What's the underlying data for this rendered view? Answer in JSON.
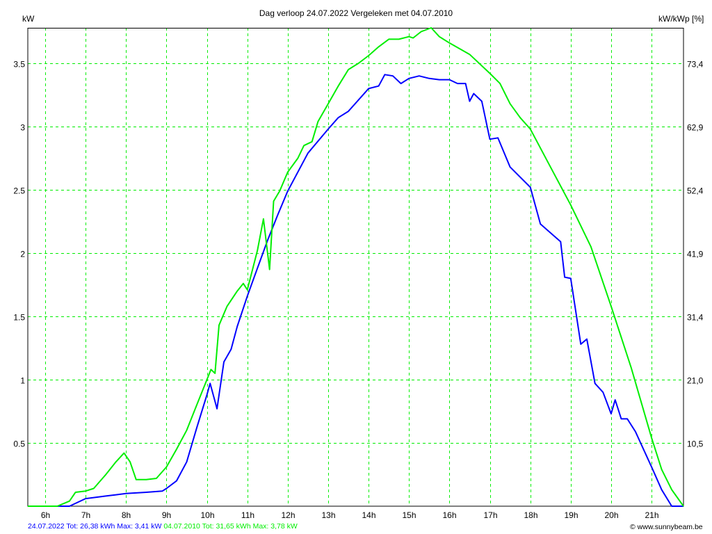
{
  "chart_data": {
    "type": "line",
    "title": "Dag  verloop 24.07.2022   Vergeleken met 04.07.2010",
    "ylabel": "kW",
    "y2label": "kW/kWp [%]",
    "xlim": [
      5.57,
      21.79
    ],
    "ylim": [
      0,
      3.78
    ],
    "grid": true,
    "xticks": [
      6,
      7,
      8,
      9,
      10,
      11,
      12,
      13,
      14,
      15,
      16,
      17,
      18,
      19,
      20,
      21
    ],
    "xtick_labels": [
      "6h",
      "7h",
      "8h",
      "9h",
      "10h",
      "11h",
      "12h",
      "13h",
      "14h",
      "15h",
      "16h",
      "17h",
      "18h",
      "19h",
      "20h",
      "21h"
    ],
    "yticks": [
      0.5,
      1,
      1.5,
      2,
      2.5,
      3,
      3.5
    ],
    "ytick_labels": [
      "0.5",
      "1",
      "1.5",
      "2",
      "2.5",
      "3",
      "3.5"
    ],
    "y2tick_labels": [
      "10,5",
      "21,0",
      "31,4",
      "41,9",
      "52,4",
      "62,9",
      "73,4"
    ],
    "series": [
      {
        "name": "24.07.2022",
        "color": "#0000ff",
        "x": [
          5.57,
          6.6,
          7.0,
          7.25,
          7.5,
          7.75,
          8.0,
          8.5,
          8.9,
          9.0,
          9.25,
          9.5,
          9.75,
          10.0,
          10.08,
          10.25,
          10.42,
          10.6,
          10.75,
          11.0,
          11.25,
          11.5,
          11.75,
          12.0,
          12.5,
          13.0,
          13.25,
          13.5,
          14.0,
          14.25,
          14.4,
          14.6,
          14.8,
          15.0,
          15.25,
          15.5,
          15.75,
          16.0,
          16.2,
          16.4,
          16.5,
          16.6,
          16.8,
          17.0,
          17.2,
          17.5,
          18.0,
          18.25,
          18.5,
          18.75,
          18.85,
          19.0,
          19.25,
          19.4,
          19.6,
          19.8,
          20.0,
          20.1,
          20.25,
          20.4,
          20.6,
          21.0,
          21.25,
          21.5,
          21.79
        ],
        "y": [
          0,
          0,
          0.06,
          0.07,
          0.08,
          0.09,
          0.1,
          0.11,
          0.12,
          0.14,
          0.2,
          0.35,
          0.62,
          0.88,
          0.97,
          0.77,
          1.14,
          1.24,
          1.42,
          1.66,
          1.88,
          2.1,
          2.3,
          2.49,
          2.79,
          2.98,
          3.07,
          3.12,
          3.3,
          3.32,
          3.41,
          3.4,
          3.34,
          3.38,
          3.4,
          3.38,
          3.37,
          3.37,
          3.34,
          3.34,
          3.2,
          3.26,
          3.2,
          2.9,
          2.91,
          2.68,
          2.52,
          2.23,
          2.16,
          2.09,
          1.81,
          1.8,
          1.28,
          1.32,
          0.97,
          0.9,
          0.73,
          0.84,
          0.69,
          0.69,
          0.59,
          0.31,
          0.13,
          0,
          0
        ]
      },
      {
        "name": "04.07.2010",
        "color": "#00ee00",
        "x": [
          5.57,
          6.3,
          6.6,
          6.75,
          7.0,
          7.2,
          7.5,
          7.75,
          7.95,
          8.1,
          8.25,
          8.5,
          8.75,
          9.0,
          9.25,
          9.5,
          9.75,
          10.0,
          10.1,
          10.2,
          10.3,
          10.5,
          10.75,
          10.9,
          11.0,
          11.25,
          11.4,
          11.55,
          11.65,
          11.8,
          12.0,
          12.25,
          12.4,
          12.6,
          12.75,
          13.0,
          13.25,
          13.5,
          13.75,
          14.0,
          14.25,
          14.5,
          14.75,
          15.0,
          15.1,
          15.3,
          15.55,
          15.75,
          16.0,
          16.5,
          17.0,
          17.25,
          17.5,
          17.75,
          18.0,
          18.5,
          19.0,
          19.5,
          20.0,
          20.5,
          21.0,
          21.25,
          21.5,
          21.79
        ],
        "y": [
          0,
          0,
          0.04,
          0.11,
          0.12,
          0.14,
          0.25,
          0.35,
          0.42,
          0.35,
          0.21,
          0.21,
          0.22,
          0.31,
          0.45,
          0.6,
          0.8,
          1.0,
          1.08,
          1.05,
          1.43,
          1.58,
          1.7,
          1.76,
          1.71,
          2.02,
          2.27,
          1.87,
          2.41,
          2.49,
          2.64,
          2.75,
          2.85,
          2.88,
          3.04,
          3.18,
          3.32,
          3.45,
          3.5,
          3.56,
          3.63,
          3.69,
          3.69,
          3.71,
          3.7,
          3.75,
          3.78,
          3.71,
          3.66,
          3.57,
          3.42,
          3.34,
          3.18,
          3.07,
          2.98,
          2.68,
          2.38,
          2.05,
          1.58,
          1.09,
          0.54,
          0.29,
          0.13,
          0
        ]
      }
    ]
  },
  "footer": {
    "series1_text": "24.07.2022 Tot: 26,38 kWh Max: 3,41 kW",
    "series2_text": "04.07.2010 Tot: 31,65 kWh Max: 3,78 kW",
    "copyright": "© www.sunnybeam.be"
  }
}
